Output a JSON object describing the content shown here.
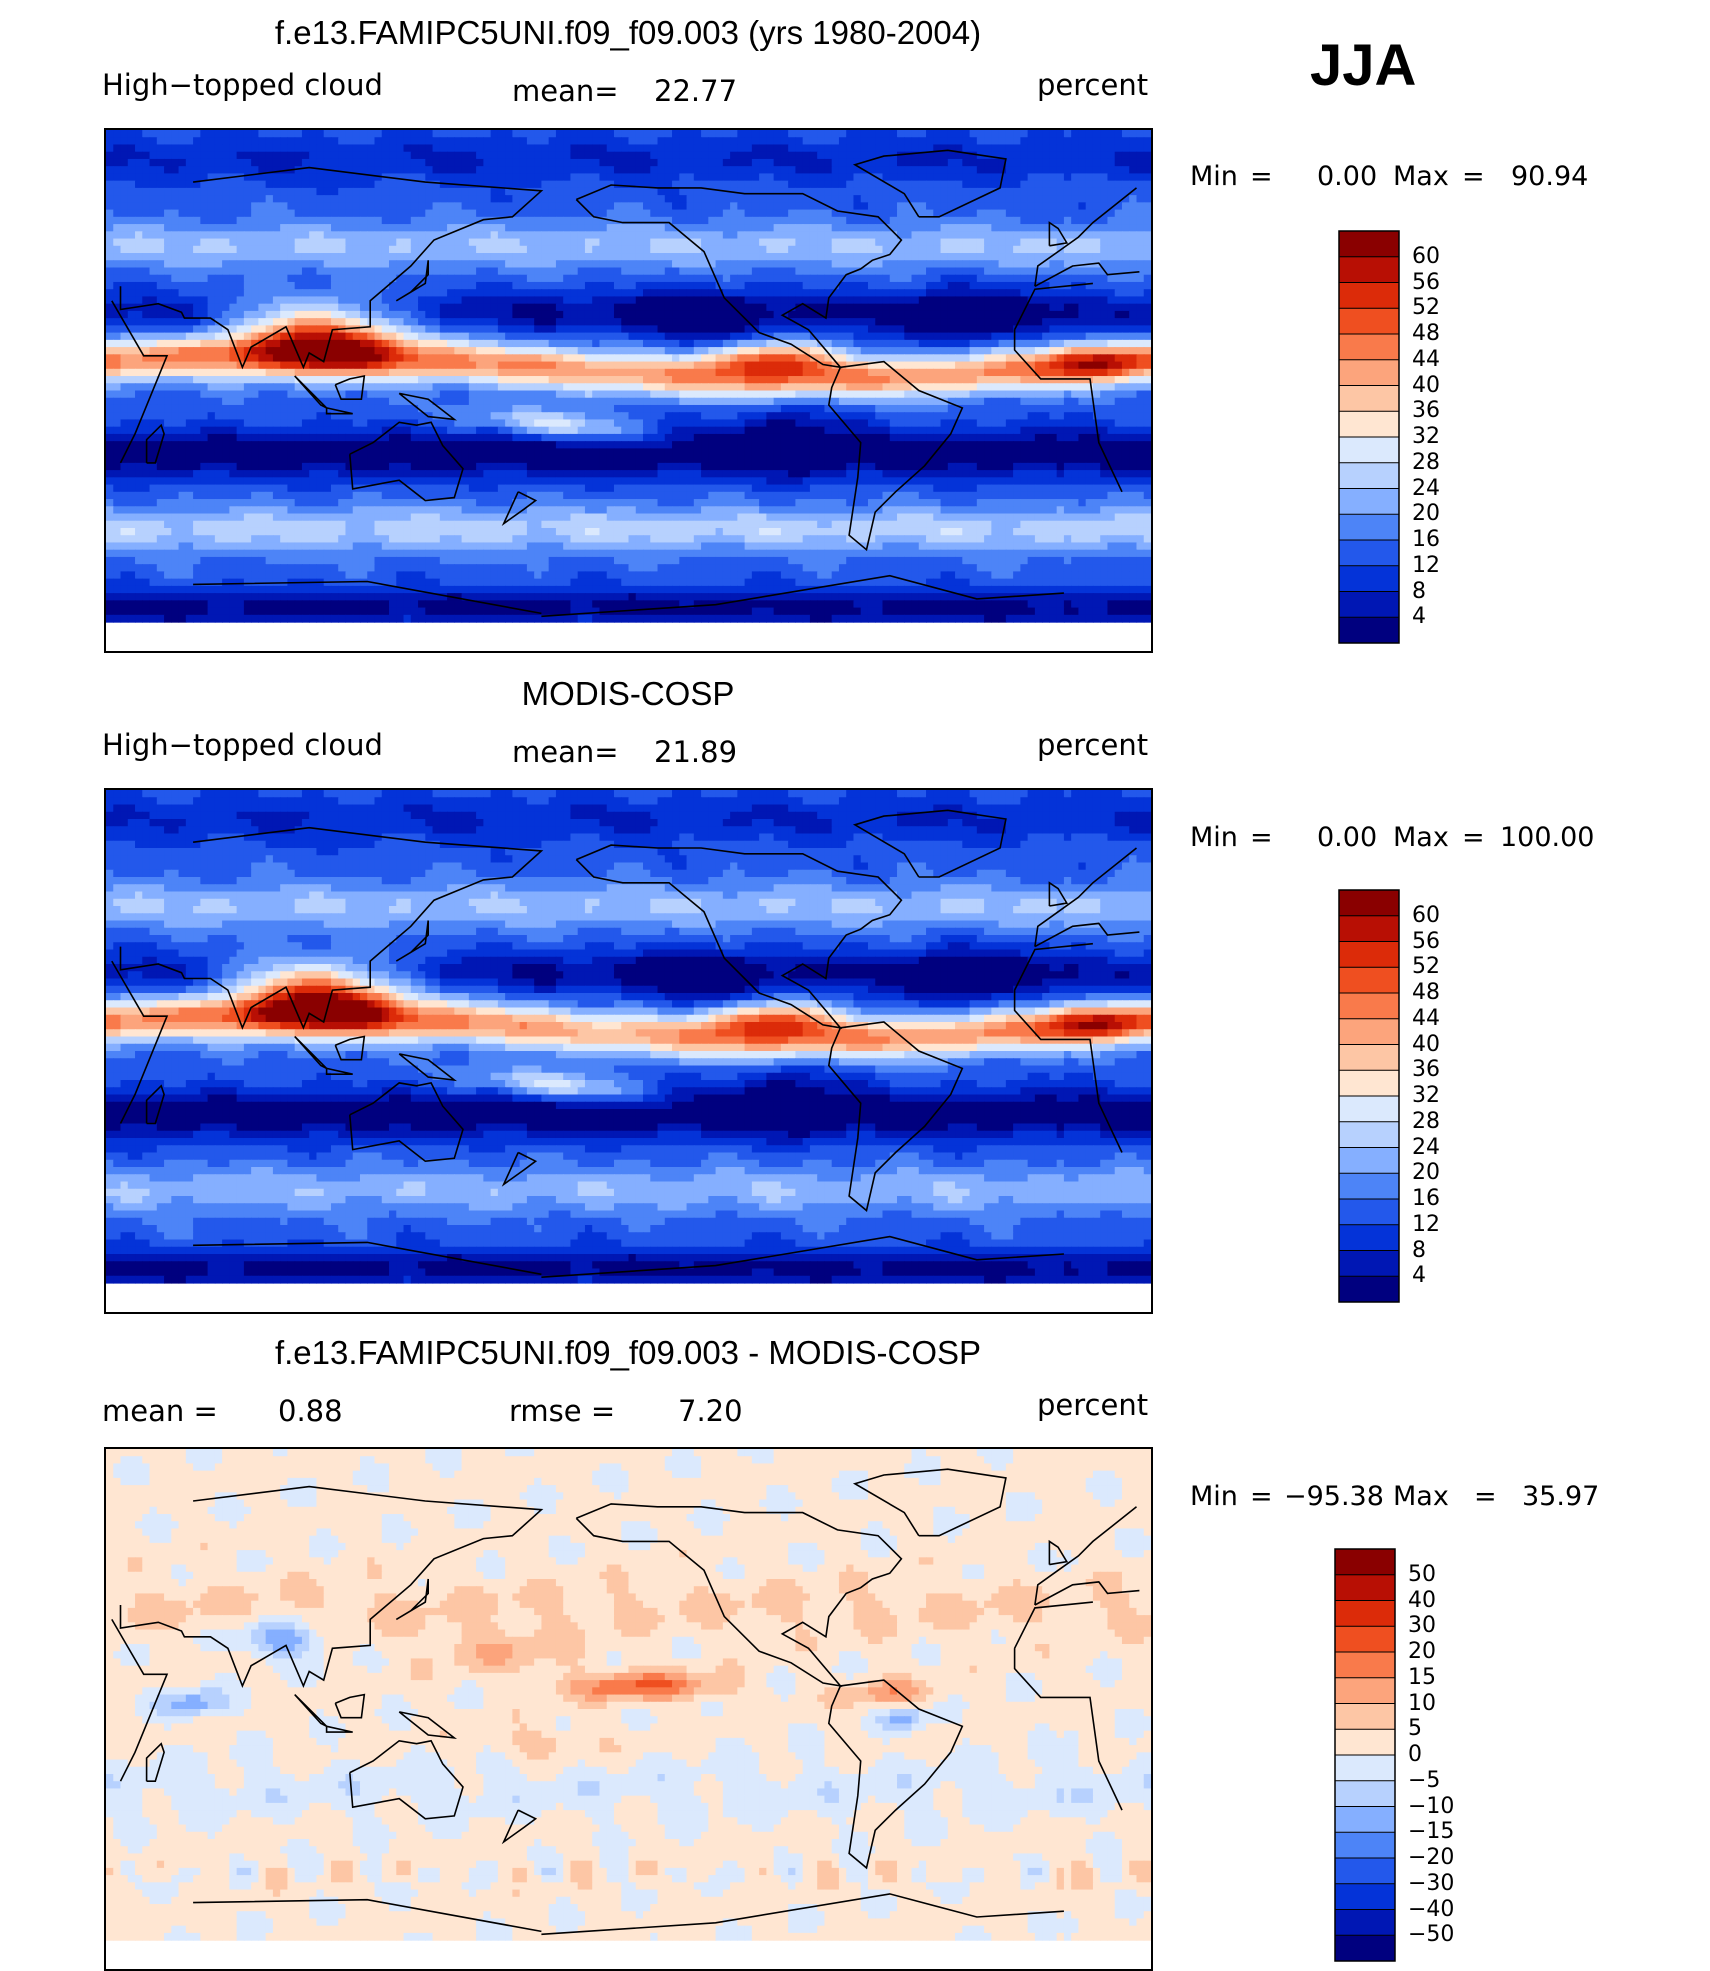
{
  "season": "JJA",
  "colors": {
    "scale_a": [
      "#00007f",
      "#0017b4",
      "#0433d8",
      "#2358eb",
      "#4d84f7",
      "#85afff",
      "#b7d1fe",
      "#dbe9fd",
      "#ffe6d2",
      "#fdc6a5",
      "#fca47c",
      "#f97a4b",
      "#ef4f20",
      "#dc2b09",
      "#b80f04",
      "#8a0000"
    ],
    "scale_b": [
      "#00007f",
      "#0017b4",
      "#0433d8",
      "#2358eb",
      "#4d84f7",
      "#85afff",
      "#b7d1fe",
      "#dbe9fd",
      "#ffe6d2",
      "#fdc6a5",
      "#fca47c",
      "#f97a4b",
      "#ef4f20",
      "#dc2b09",
      "#b80f04",
      "#8a0000"
    ]
  },
  "panels": [
    {
      "title": "f.e13.FAMIPC5UNI.f09_f09.003 (yrs 1980-2004)",
      "left_label": "High−topped cloud",
      "mid_label": "mean=",
      "mid_value": "22.77",
      "units": "percent",
      "min_label": "Min",
      "min_value": "0.00",
      "max_label": "Max",
      "max_value": "90.94",
      "levels": [
        "60",
        "56",
        "52",
        "48",
        "44",
        "40",
        "36",
        "32",
        "28",
        "24",
        "20",
        "16",
        "12",
        "8",
        "4"
      ],
      "field": "model"
    },
    {
      "title": "MODIS-COSP",
      "left_label": "High−topped cloud",
      "mid_label": "mean=",
      "mid_value": "21.89",
      "units": "percent",
      "min_label": "Min",
      "min_value": "0.00",
      "max_label": "Max",
      "max_value": "100.00",
      "levels": [
        "60",
        "56",
        "52",
        "48",
        "44",
        "40",
        "36",
        "32",
        "28",
        "24",
        "20",
        "16",
        "12",
        "8",
        "4"
      ],
      "field": "obs"
    },
    {
      "title": "f.e13.FAMIPC5UNI.f09_f09.003 - MODIS-COSP",
      "left_label": "mean =",
      "left_value": "0.88",
      "mid_label": "rmse =",
      "mid_value": "7.20",
      "units": "percent",
      "min_label": "Min",
      "min_value": "−95.38",
      "max_label": "Max",
      "max_value": "35.97",
      "levels": [
        "50",
        "40",
        "30",
        "20",
        "15",
        "10",
        "5",
        "0",
        "−5",
        "−10",
        "−15",
        "−20",
        "−30",
        "−40",
        "−50"
      ],
      "field": "diff"
    }
  ]
}
